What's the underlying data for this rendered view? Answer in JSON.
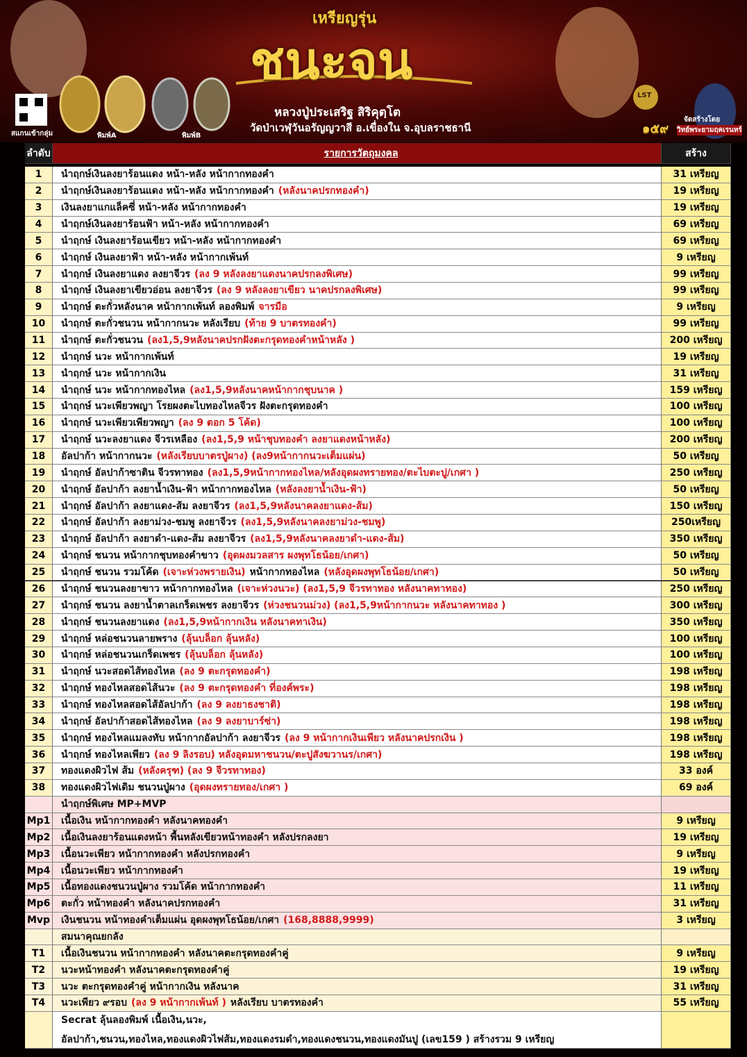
{
  "header": {
    "series_label": "เหรียญรุ่น",
    "title": "ชนะจน",
    "monk": "หลวงปู่ประเสริฐ สิริคุตฺโต",
    "temple": "วัดป่าเวฬุวันอรัญญวาสี อ.เขื่องใน จ.อุบลราชธานี",
    "qr_caption": "สแกนเข้ากลุ่ม",
    "mold_a": "พิมพ์A",
    "mold_b": "พิมพ์B",
    "badge": "LST",
    "badge_number": "๑๕๙",
    "maker_label": "จัดสร้างโดย",
    "maker_name": "วิทย์พระยามฤคเรนทร์"
  },
  "table": {
    "columns": [
      "ลำดับ",
      "รายการวัตถุมงคล",
      "สร้าง"
    ],
    "rows": [
      {
        "no": "1",
        "desc": [
          {
            "t": "นำฤกษ์เงินลงยาร้อนแดง หน้า-หลัง หน้ากากทองคำ",
            "c": "black"
          }
        ],
        "amount": "31 เหรียญ",
        "band": "white"
      },
      {
        "no": "2",
        "desc": [
          {
            "t": "นำฤกษ์เงินลงยาร้อนแดง หน้า-หลัง หน้ากากทองคำ",
            "c": "black"
          },
          {
            "t": "(หลังนาคปรกทองคำ)",
            "c": "red"
          }
        ],
        "amount": "19 เหรียญ",
        "band": "white"
      },
      {
        "no": "3",
        "desc": [
          {
            "t": "เงินลงยาแกแล็คซี่ หน้า-หลัง หน้ากากทองคำ",
            "c": "black"
          }
        ],
        "amount": "19 เหรียญ",
        "band": "white"
      },
      {
        "no": "4",
        "desc": [
          {
            "t": "นำฤกษ์เงินลงยาร้อนฟ้า  หน้า-หลัง หน้ากากทองคำ",
            "c": "black"
          }
        ],
        "amount": "69 เหรียญ",
        "band": "white"
      },
      {
        "no": "5",
        "desc": [
          {
            "t": "นำฤกษ์ เงินลงยาร้อนเขียว หน้า-หลัง หน้ากากทองคำ",
            "c": "black"
          }
        ],
        "amount": "69 เหรียญ",
        "band": "white"
      },
      {
        "no": "6",
        "desc": [
          {
            "t": "นำฤกษ์ เงินลงยาฟ้า หน้า-หลัง หน้ากากเพ้นท์",
            "c": "black"
          }
        ],
        "amount": "9 เหรียญ",
        "band": "white"
      },
      {
        "no": "7",
        "desc": [
          {
            "t": "นำฤกษ์ เงินลงยาแดง ลงยาจีวร",
            "c": "black"
          },
          {
            "t": "(ลง 9 หลังลงยาแดงนาคปรกลงพิเศษ)",
            "c": "red"
          }
        ],
        "amount": "99 เหรียญ",
        "band": "white"
      },
      {
        "no": "8",
        "desc": [
          {
            "t": "นำฤกษ์ เงินลงยาเขียวอ่อน  ลงยาจีวร",
            "c": "black"
          },
          {
            "t": "(ลง 9 หลังลงยาเขียว นาคปรกลงพิเศษ)",
            "c": "red"
          }
        ],
        "amount": "99 เหรียญ",
        "band": "white"
      },
      {
        "no": "9",
        "desc": [
          {
            "t": "นำฤกษ์ ตะกั่วหลังนาค หน้ากากเพ้นท์ ลองพิมพ์",
            "c": "black"
          },
          {
            "t": "จารมือ",
            "c": "red"
          }
        ],
        "amount": "9 เหรียญ",
        "band": "white"
      },
      {
        "no": "10",
        "desc": [
          {
            "t": "นำฤกษ์ ตะกั่วชนวน หน้ากากนวะ หลังเรียบ",
            "c": "black"
          },
          {
            "t": "(ท้าย 9 บาตรทองคำ)",
            "c": "red"
          }
        ],
        "amount": "99 เหรียญ",
        "band": "white"
      },
      {
        "no": "11",
        "desc": [
          {
            "t": "นำฤกษ์ ตะกั่วชนวน",
            "c": "black"
          },
          {
            "t": "(ลง1,5,9หลังนาคปรกฝังตะกรุดทองคำหน้าหลัง )",
            "c": "red"
          }
        ],
        "amount": "200 เหรียญ",
        "band": "white"
      },
      {
        "no": "12",
        "desc": [
          {
            "t": "นำฤกษ์ นวะ หน้ากากเพ้นท์",
            "c": "black"
          }
        ],
        "amount": "19 เหรียญ",
        "band": "white"
      },
      {
        "no": "13",
        "desc": [
          {
            "t": "นำฤกษ์ นวะ หน้ากากเงิน",
            "c": "black"
          }
        ],
        "amount": "31 เหรียญ",
        "band": "white"
      },
      {
        "no": "14",
        "desc": [
          {
            "t": "นำฤกษ์ นวะ หน้ากากทองไหล",
            "c": "black"
          },
          {
            "t": "(ลง1,5,9หลังนาคหน้ากากชุบนาค )",
            "c": "red"
          }
        ],
        "amount": "159 เหรียญ",
        "band": "white"
      },
      {
        "no": "15",
        "desc": [
          {
            "t": "นำฤกษ์ นวะเพียวพญา โรยผงตะไบทองไหลจีวร ฝังตะกรุดทองคำ",
            "c": "black"
          }
        ],
        "amount": "100 เหรียญ",
        "band": "white"
      },
      {
        "no": "16",
        "desc": [
          {
            "t": "นำฤกษ์ นวะเพียวเพียวพญา",
            "c": "black"
          },
          {
            "t": "(ลง 9 ตอก 5 โค้ด)",
            "c": "red"
          }
        ],
        "amount": "100 เหรียญ",
        "band": "white"
      },
      {
        "no": "17",
        "desc": [
          {
            "t": "นำฤกษ์ นวะลงยาแดง จีวรเหลือง",
            "c": "black"
          },
          {
            "t": "(ลง1,5,9 หน้าชุบทองคำ ลงยาแดงหน้าหลัง)",
            "c": "red"
          }
        ],
        "amount": "200 เหรียญ",
        "band": "white"
      },
      {
        "no": "18",
        "desc": [
          {
            "t": "อัลปาก้า หน้ากากนวะ",
            "c": "black"
          },
          {
            "t": "(หลังเรียบบาตรปู่ผาง) (ลง9หน้ากากนวะเต็มแผ่น)",
            "c": "red"
          }
        ],
        "amount": "50 เหรียญ",
        "band": "white"
      },
      {
        "no": "19",
        "desc": [
          {
            "t": "นำฤกษ์ อัลปาก้าซาติน  จีวรทาทอง",
            "c": "black"
          },
          {
            "t": "(ลง1,5,9หน้ากากทองไหล/หลังอุดผงทรายทอง/ตะไบตะปู/เกศา )",
            "c": "red"
          }
        ],
        "amount": "250 เหรียญ",
        "band": "white"
      },
      {
        "no": "20",
        "desc": [
          {
            "t": "นำฤกษ์ อัลปาก้า ลงยาน้ำเงิน-ฟ้า หน้ากากทองไหล",
            "c": "black"
          },
          {
            "t": "(หลังลงยาน้ำเงิน-ฟ้า)",
            "c": "red"
          }
        ],
        "amount": "50 เหรียญ",
        "band": "white"
      },
      {
        "no": "21",
        "desc": [
          {
            "t": "นำฤกษ์ อัลปาก้า ลงยาแดง-ส้ม  ลงยาจีวร",
            "c": "black"
          },
          {
            "t": "(ลง1,5,9หลังนาคลงยาแดง-ส้ม)",
            "c": "red"
          }
        ],
        "amount": "150 เหรียญ",
        "band": "white"
      },
      {
        "no": "22",
        "desc": [
          {
            "t": "นำฤกษ์ อัลปาก้า ลงยาม่วง-ชมพู  ลงยาจีวร",
            "c": "black"
          },
          {
            "t": "(ลง1,5,9หลังนาคลงยาม่วง-ชมพู)",
            "c": "red"
          }
        ],
        "amount": "250เหรียญ",
        "band": "white"
      },
      {
        "no": "23",
        "desc": [
          {
            "t": "นำฤกษ์ อัลปาก้า ลงยาดำ-แดง-ส้ม ลงยาจีวร",
            "c": "black"
          },
          {
            "t": "(ลง1,5,9หลังนาคลงยาดำ-แดง-ส้ม)",
            "c": "red"
          }
        ],
        "amount": "350 เหรียญ",
        "band": "white"
      },
      {
        "no": "24",
        "desc": [
          {
            "t": "นำฤกษ์ ชนวน หน้ากากชุบทองคำขาว",
            "c": "black"
          },
          {
            "t": "(อุดผงมวลสาร ผงพุทโธน้อย/เกศา)",
            "c": "red"
          }
        ],
        "amount": "50 เหรียญ",
        "band": "white"
      },
      {
        "no": "25",
        "desc": [
          {
            "t": "นำฤกษ์ ชนวน รวมโค้ด",
            "c": "black"
          },
          {
            "t": "(เจาะห่วงพรายเงิน)",
            "c": "red"
          },
          {
            "t": "หน้ากากทองไหล",
            "c": "black"
          },
          {
            "t": "(หลังอุดผงพุทโธน้อย/เกศา)",
            "c": "red"
          }
        ],
        "amount": "50 เหรียญ",
        "band": "white"
      },
      {
        "no": "26",
        "desc": [
          {
            "t": "นำฤกษ์ ชนวนลงยาขาว  หน้ากากทองไหล",
            "c": "black"
          },
          {
            "t": "(เจาะห่วงนวะ) (ลง1,5,9 จีวรทาทอง หลังนาคทาทอง)",
            "c": "red"
          }
        ],
        "amount": "250  เหรียญ",
        "band": "white"
      },
      {
        "no": "27",
        "desc": [
          {
            "t": "นำฤกษ์ ชนวน ลงยาน้ำตาลเกร็ดเพชร ลงยาจีวร",
            "c": "black"
          },
          {
            "t": "(ห่วงชนวนม่วง) (ลง1,5,9หน้ากากนวะ หลังนาคทาทอง )",
            "c": "red"
          }
        ],
        "amount": "300 เหรียญ",
        "band": "white"
      },
      {
        "no": "28",
        "desc": [
          {
            "t": "นำฤกษ์ ชนวนลงยาแดง",
            "c": "black"
          },
          {
            "t": "(ลง1,5,9หน้ากากเงิน หลังนาคทาเงิน)",
            "c": "red"
          }
        ],
        "amount": "350 เหรียญ",
        "band": "white"
      },
      {
        "no": "29",
        "desc": [
          {
            "t": "นำฤกษ์ หล่อชนวนลายพราง",
            "c": "black"
          },
          {
            "t": "(ลุ้นบล็อก ลุ้นหลัง)",
            "c": "red"
          }
        ],
        "amount": "100 เหรียญ",
        "band": "white"
      },
      {
        "no": "30",
        "desc": [
          {
            "t": "นำฤกษ์ หล่อชนวนเกร็ดเพชร",
            "c": "black"
          },
          {
            "t": "(ลุ้นบล็อก ลุ้นหลัง)",
            "c": "red"
          }
        ],
        "amount": "100 เหรียญ",
        "band": "white"
      },
      {
        "no": "31",
        "desc": [
          {
            "t": "นำฤกษ์ นวะสอดไส้ทองไหล",
            "c": "black"
          },
          {
            "t": "(ลง 9 ตะกรุดทองคำ)",
            "c": "red"
          }
        ],
        "amount": "198 เหรียญ",
        "band": "white"
      },
      {
        "no": "32",
        "desc": [
          {
            "t": "นำฤกษ์ ทองไหลสอดไส้นวะ",
            "c": "black"
          },
          {
            "t": "(ลง 9 ตะกรุดทองคำ ที่องค์พระ)",
            "c": "red"
          }
        ],
        "amount": "198 เหรียญ",
        "band": "white"
      },
      {
        "no": "33",
        "desc": [
          {
            "t": "นำฤกษ์ ทองไหลสอดไส้อัลปาก้า",
            "c": "black"
          },
          {
            "t": "(ลง 9 ลงยาธงชาติ)",
            "c": "red"
          }
        ],
        "amount": "198 เหรียญ",
        "band": "white"
      },
      {
        "no": "34",
        "desc": [
          {
            "t": "นำฤกษ์ อัลปาก้าสอดไส้ทองไหล",
            "c": "black"
          },
          {
            "t": "(ลง 9 ลงยาบาร์ซ่า)",
            "c": "red"
          }
        ],
        "amount": "198 เหรียญ",
        "band": "white"
      },
      {
        "no": "35",
        "desc": [
          {
            "t": "นำฤกษ์  ทองไหลแมลงทับ หน้ากากอัลปาก้า ลงยาจีวร",
            "c": "black"
          },
          {
            "t": "(ลง 9 หน้ากากเงินเพียว หลังนาคปรกเงิน )",
            "c": "red"
          }
        ],
        "amount": "198 เหรียญ",
        "band": "white"
      },
      {
        "no": "36",
        "desc": [
          {
            "t": "นำฤกษ์ ทองไหลเพียว",
            "c": "black"
          },
          {
            "t": "(ลง 9 ลิงรอบ) หลังอุดมหาชนวน/ตะปูสังฆวานร/เกศา)",
            "c": "red"
          }
        ],
        "amount": "198 เหรียญ",
        "band": "white"
      },
      {
        "no": "37",
        "desc": [
          {
            "t": "ทองแดงผิวไฟ ส้ม",
            "c": "black"
          },
          {
            "t": "(หลังครุฑ) (ลง 9 จีวรทาทอง)",
            "c": "red"
          }
        ],
        "amount": "33 องค์",
        "band": "white"
      },
      {
        "no": "38",
        "desc": [
          {
            "t": "ทองแดงผิวไฟเดิม ชนวนปู่ผาง",
            "c": "black"
          },
          {
            "t": "(อุดผงทรายทอง/เกศา )",
            "c": "red"
          }
        ],
        "amount": "69 องค์",
        "band": "white"
      },
      {
        "desc": [
          {
            "t": "นำฤกษ์พิเศษ MP+MVP",
            "c": "black"
          }
        ],
        "band": "pink"
      },
      {
        "no": "Mp1",
        "desc": [
          {
            "t": "เนื้อเงิน หน้ากากทองคำ หลังนาคทองคำ",
            "c": "black"
          }
        ],
        "amount": "9 เหรียญ",
        "band": "pink"
      },
      {
        "no": "Mp2",
        "desc": [
          {
            "t": "เนื้อเงินลงยาร้อนแดงหน้า พื้นหลังเขียวหน้าทองคำ หลังปรกลงยา",
            "c": "black"
          }
        ],
        "amount": "19 เหรียญ",
        "band": "pink"
      },
      {
        "no": "Mp3",
        "desc": [
          {
            "t": "เนื้อนวะเพียว หน้ากากทองคำ หลังปรกทองคำ",
            "c": "black"
          }
        ],
        "amount": "9 เหรียญ",
        "band": "pink"
      },
      {
        "no": "Mp4",
        "desc": [
          {
            "t": "เนื้อนวะเพียว หน้ากากทองคำ",
            "c": "black"
          }
        ],
        "amount": "19 เหรียญ",
        "band": "pink"
      },
      {
        "no": "Mp5",
        "desc": [
          {
            "t": "เนื้อทองแดงชนวนปู่ผาง รวมโค้ด  หน้ากากทองคำ",
            "c": "black"
          }
        ],
        "amount": "11 เหรียญ",
        "band": "pink"
      },
      {
        "no": "Mp6",
        "desc": [
          {
            "t": "ตะกั่ว หน้าทองคำ หลังนาคปรกทองคำ",
            "c": "black"
          }
        ],
        "amount": "31 เหรียญ",
        "band": "pink"
      },
      {
        "no": "Mvp",
        "desc": [
          {
            "t": "เงินชนวน หน้าทองคำเต็มแผ่น อุดผงพุทโธน้อย/เกศา",
            "c": "black"
          },
          {
            "t": "(168,8888,9999)",
            "c": "red"
          }
        ],
        "amount": "3 เหรียญ",
        "band": "pink"
      },
      {
        "desc": [
          {
            "t": "สมนาคุณยกลัง",
            "c": "black"
          }
        ],
        "band": "cream"
      },
      {
        "no": "T1",
        "desc": [
          {
            "t": "เนื้อเงินชนวน หน้ากากทองคำ หลังนาคตะกรุดทองคำคู่",
            "c": "black"
          }
        ],
        "amount": "9 เหรียญ",
        "band": "cream"
      },
      {
        "no": "T2",
        "desc": [
          {
            "t": "นวะหน้าทองคำ หลังนาคตะกรุดทองคำคู่",
            "c": "black"
          }
        ],
        "amount": "19 เหรียญ",
        "band": "cream"
      },
      {
        "no": "T3",
        "desc": [
          {
            "t": "นวะ ตะกรุดทองคำคู่ หน้ากากเงิน  หลังนาค",
            "c": "black"
          }
        ],
        "amount": "31 เหรียญ",
        "band": "cream"
      },
      {
        "no": "T4",
        "desc": [
          {
            "t": "นวะเพียว ๙รอบ",
            "c": "black"
          },
          {
            "t": "(ลง 9 หน้ากากเพ้นท์ )",
            "c": "red"
          },
          {
            "t": "หลังเรียบ บาตรทองคำ",
            "c": "black"
          }
        ],
        "amount": "55 เหรียญ",
        "band": "cream"
      },
      {
        "desc": [
          {
            "t": "Secrat  ลุ้นลองพิมพ์ เนื้อเงิน,นวะ,",
            "c": "black"
          },
          {
            "t": "อัลปาก้า,ชนวน,ทองไหล,ทองแดงผิวไฟส้ม,ทองแดงรมดำ,ทองแดงชนวน,ทองแดงมันปู (เลข159 ) สร้างรวม 9 เหรียญ",
            "c": "black"
          }
        ],
        "band": "white",
        "wrap": true
      }
    ]
  }
}
